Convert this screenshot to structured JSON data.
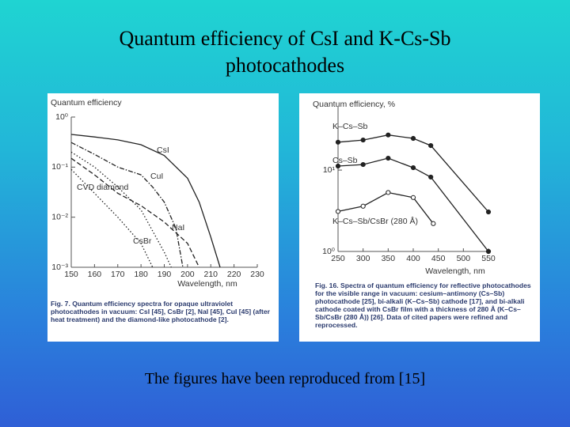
{
  "slide": {
    "title": "Quantum efficiency of CsI and K-Cs-Sb photocathodes",
    "footer": "The figures have been reproduced from [15]"
  },
  "chart_data": [
    {
      "type": "line",
      "ylabel": "Quantum efficiency",
      "xlabel": "Wavelength, nm",
      "log_y": true,
      "xlim": [
        150,
        230
      ],
      "xticks": [
        150,
        160,
        170,
        180,
        190,
        200,
        210,
        220,
        230
      ],
      "ylim": [
        0.001,
        1
      ],
      "yticks": [
        {
          "value": 1,
          "label": "10⁰"
        },
        {
          "value": 0.1,
          "label": "10⁻¹"
        },
        {
          "value": 0.01,
          "label": "10⁻²"
        },
        {
          "value": 0.001,
          "label": "10⁻³"
        }
      ],
      "series": [
        {
          "name": "CsI",
          "color": "#222222",
          "line_style": "solid",
          "x": [
            150,
            160,
            170,
            180,
            190,
            200,
            205,
            210,
            214
          ],
          "values": [
            0.45,
            0.4,
            0.35,
            0.28,
            0.17,
            0.06,
            0.02,
            0.004,
            0.001
          ]
        },
        {
          "name": "CuI",
          "color": "#222222",
          "line_style": "dashdot",
          "x": [
            150,
            160,
            170,
            180,
            185,
            190,
            195,
            198
          ],
          "values": [
            0.31,
            0.18,
            0.1,
            0.07,
            0.04,
            0.02,
            0.006,
            0.001
          ]
        },
        {
          "name": "CVD diamond",
          "color": "#222222",
          "line_style": "dotted",
          "x": [
            150,
            160,
            170,
            180,
            190,
            193
          ],
          "values": [
            0.2,
            0.1,
            0.04,
            0.014,
            0.002,
            0.001
          ]
        },
        {
          "name": "NaI",
          "color": "#222222",
          "line_style": "dashed",
          "x": [
            150,
            160,
            170,
            180,
            190,
            200,
            205
          ],
          "values": [
            0.15,
            0.07,
            0.03,
            0.017,
            0.008,
            0.003,
            0.001
          ]
        },
        {
          "name": "CsBr",
          "color": "#222222",
          "line_style": "dotted",
          "x": [
            150,
            160,
            170,
            180,
            185
          ],
          "values": [
            0.09,
            0.03,
            0.01,
            0.003,
            0.001
          ]
        }
      ],
      "caption": "Fig. 7. Quantum efficiency spectra for opaque ultraviolet photocathodes in vacuum: CsI [45], CsBr [2], NaI [45], CuI [45] (after heat treatment) and the diamond-like photocathode [2]."
    },
    {
      "type": "line",
      "ylabel": "Quantum efficiency, %",
      "xlabel": "Wavelength, nm",
      "log_y": true,
      "xlim": [
        250,
        550
      ],
      "xticks": [
        250,
        300,
        350,
        400,
        450,
        500,
        550
      ],
      "ylim": [
        1,
        60
      ],
      "yticks": [
        {
          "value": 1,
          "label": "10⁰"
        },
        {
          "value": 10,
          "label": "10¹"
        }
      ],
      "series": [
        {
          "name": "K–Cs–Sb",
          "color": "#222222",
          "line_style": "solid",
          "marker": "filled",
          "x": [
            250,
            300,
            350,
            400,
            435,
            550
          ],
          "values": [
            22,
            23.4,
            27,
            24.5,
            20,
            3.06
          ]
        },
        {
          "name": "Cs–Sb",
          "color": "#222222",
          "line_style": "solid",
          "marker": "filled",
          "x": [
            250,
            300,
            350,
            400,
            435,
            550
          ],
          "values": [
            11.2,
            11.7,
            14,
            10.7,
            8.2,
            1
          ]
        },
        {
          "name": "K–Cs–Sb/CsBr (280 Å)",
          "color": "#222222",
          "line_style": "solid",
          "marker": "open",
          "x": [
            250,
            300,
            350,
            400,
            440
          ],
          "values": [
            3.1,
            3.6,
            5.3,
            4.6,
            2.2
          ]
        }
      ],
      "caption": "Fig. 16. Spectra of quantum efficiency for reflective photocathodes for the visible range in vacuum: cesium–antimony (Cs–Sb) photocathode [25], bi-alkali (K–Cs–Sb) cathode [17], and bi-alkali cathode coated with CsBr film with a thickness of 280 Å (K–Cs–Sb/CsBr (280 Å)) [26]. Data of cited papers were refined and reprocessed."
    }
  ]
}
